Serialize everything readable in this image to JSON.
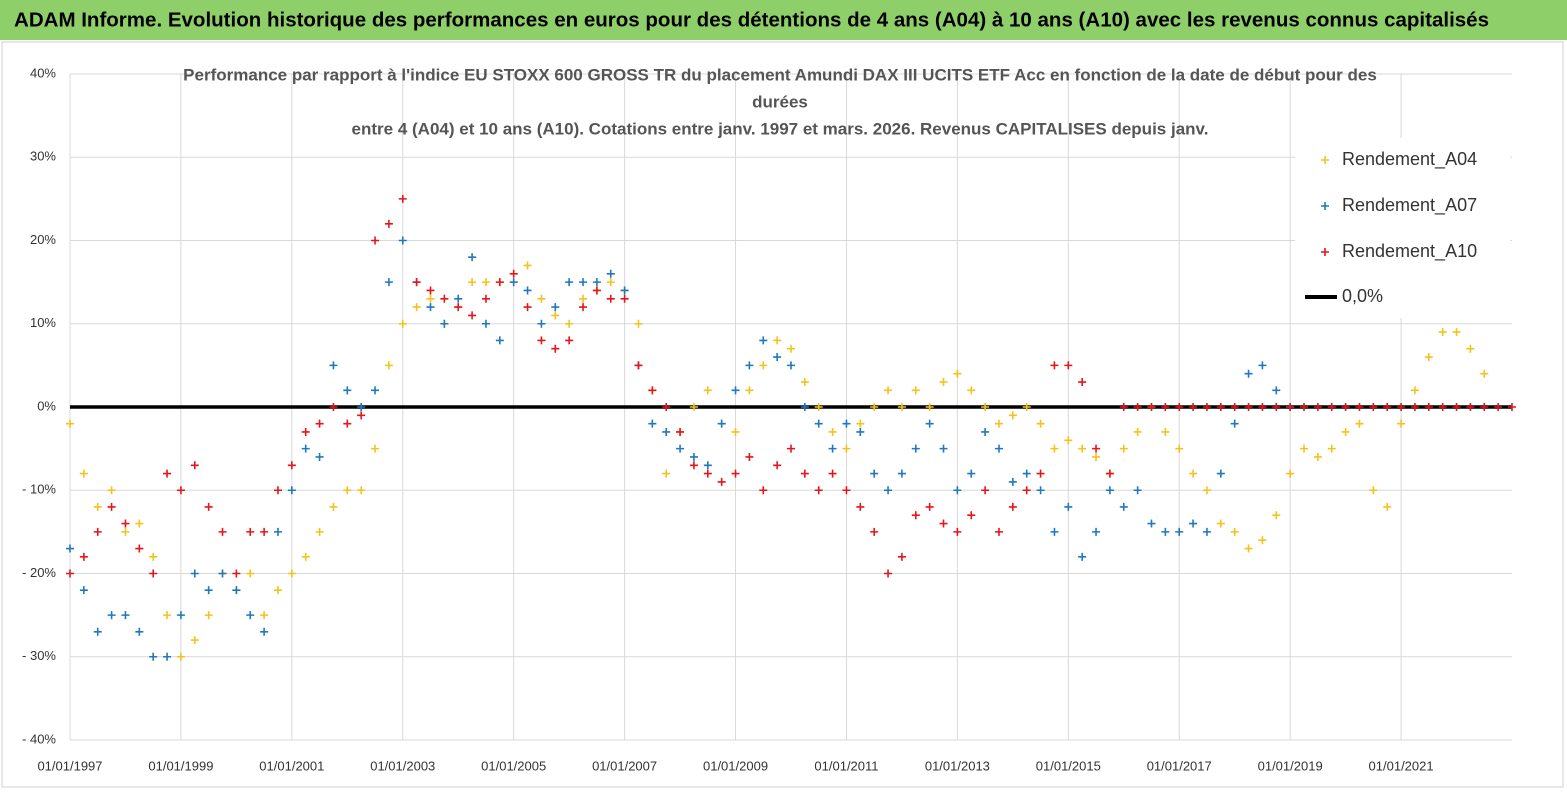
{
  "header": {
    "title": "ADAM Informe. Evolution historique des performances en euros pour des détentions de 4 ans (A04) à 10 ans (A10) avec les revenus connus capitalisés"
  },
  "chart_data": {
    "type": "scatter",
    "title": [
      "Performance par rapport à l'indice EU STOXX 600 GROSS TR  du placement Amundi DAX III UCITS ETF Acc en fonction de la date de début pour des",
      "durées",
      "entre 4 (A04) et 10 ans (A10). Cotations entre janv. 1997 et mars. 2026. Revenus CAPITALISES depuis janv."
    ],
    "x": [
      1997,
      1997.25,
      1997.5,
      1997.75,
      1998,
      1998.25,
      1998.5,
      1998.75,
      1999,
      1999.25,
      1999.5,
      1999.75,
      2000,
      2000.25,
      2000.5,
      2000.75,
      2001,
      2001.25,
      2001.5,
      2001.75,
      2002,
      2002.25,
      2002.5,
      2002.75,
      2003,
      2003.25,
      2003.5,
      2003.75,
      2004,
      2004.25,
      2004.5,
      2004.75,
      2005,
      2005.25,
      2005.5,
      2005.75,
      2006,
      2006.25,
      2006.5,
      2006.75,
      2007,
      2007.25,
      2007.5,
      2007.75,
      2008,
      2008.25,
      2008.5,
      2008.75,
      2009,
      2009.25,
      2009.5,
      2009.75,
      2010,
      2010.25,
      2010.5,
      2010.75,
      2011,
      2011.25,
      2011.5,
      2011.75,
      2012,
      2012.25,
      2012.5,
      2012.75,
      2013,
      2013.25,
      2013.5,
      2013.75,
      2014,
      2014.25,
      2014.5,
      2014.75,
      2015,
      2015.25,
      2015.5,
      2015.75,
      2016,
      2016.25,
      2016.5,
      2016.75,
      2017,
      2017.25,
      2017.5,
      2017.75,
      2018,
      2018.25,
      2018.5,
      2018.75,
      2019,
      2019.25,
      2019.5,
      2019.75,
      2020,
      2020.25,
      2020.5,
      2020.75,
      2021,
      2021.25,
      2021.5,
      2021.75,
      2022,
      2022.25,
      2022.5,
      2022.75,
      2023
    ],
    "series": [
      {
        "name": "Rendement_A04",
        "color": "#f5c21b",
        "values": [
          -2,
          -8,
          -12,
          -10,
          -15,
          -14,
          -18,
          -25,
          -30,
          -28,
          -25,
          -20,
          -22,
          -20,
          -25,
          -22,
          -20,
          -18,
          -15,
          -12,
          -10,
          -10,
          -5,
          5,
          10,
          12,
          13,
          10,
          12,
          15,
          15,
          15,
          15,
          17,
          13,
          11,
          10,
          13,
          14,
          15,
          14,
          10,
          2,
          -8,
          -3,
          0,
          2,
          -2,
          -3,
          2,
          5,
          8,
          7,
          3,
          0,
          -3,
          -5,
          -2,
          0,
          2,
          0,
          2,
          0,
          3,
          4,
          2,
          0,
          -2,
          -1,
          0,
          -2,
          -5,
          -4,
          -5,
          -6,
          -8,
          -5,
          -3,
          0,
          -3,
          -5,
          -8,
          -10,
          -14,
          -15,
          -17,
          -16,
          -13,
          -8,
          -5,
          -6,
          -5,
          -3,
          -2,
          -10,
          -12,
          -2,
          2,
          6,
          9,
          9,
          7,
          4,
          null,
          null
        ]
      },
      {
        "name": "Rendement_A07",
        "color": "#1f78c1",
        "values": [
          -17,
          -22,
          -27,
          -25,
          -25,
          -27,
          -30,
          -30,
          -25,
          -20,
          -22,
          -20,
          -22,
          -25,
          -27,
          -15,
          -10,
          -5,
          -6,
          5,
          2,
          0,
          2,
          15,
          20,
          15,
          12,
          10,
          13,
          18,
          10,
          8,
          15,
          14,
          10,
          12,
          15,
          15,
          15,
          16,
          14,
          5,
          -2,
          -3,
          -5,
          -6,
          -7,
          -2,
          2,
          5,
          8,
          6,
          5,
          0,
          -2,
          -5,
          -2,
          -3,
          -8,
          -10,
          -8,
          -5,
          -2,
          -5,
          -10,
          -8,
          -3,
          -5,
          -9,
          -8,
          -10,
          -15,
          -12,
          -18,
          -15,
          -10,
          -12,
          -10,
          -14,
          -15,
          -15,
          -14,
          -15,
          -8,
          -2,
          4,
          5,
          2,
          0,
          null,
          null,
          null,
          null,
          null,
          null,
          null,
          null,
          null,
          null,
          null,
          null,
          null,
          null,
          null,
          null
        ]
      },
      {
        "name": "Rendement_A10",
        "color": "#e8141a",
        "values": [
          -20,
          -18,
          -15,
          -12,
          -14,
          -17,
          -20,
          -8,
          -10,
          -7,
          -12,
          -15,
          -20,
          -15,
          -15,
          -10,
          -7,
          -3,
          -2,
          0,
          -2,
          -1,
          20,
          22,
          25,
          15,
          14,
          13,
          12,
          11,
          13,
          15,
          16,
          12,
          8,
          7,
          8,
          12,
          14,
          13,
          13,
          5,
          2,
          0,
          -3,
          -7,
          -8,
          -9,
          -8,
          -6,
          -10,
          -7,
          -5,
          -8,
          -10,
          -8,
          -10,
          -12,
          -15,
          -20,
          -18,
          -13,
          -12,
          -14,
          -15,
          -13,
          -10,
          -15,
          -12,
          -10,
          -8,
          5,
          5,
          3,
          -5,
          -8,
          0,
          0,
          0,
          0,
          0,
          0,
          0,
          0,
          0,
          0,
          0,
          0,
          0,
          0,
          0,
          0,
          0,
          0,
          0,
          0,
          0,
          0,
          0,
          0,
          0,
          0,
          0,
          0,
          0
        ]
      }
    ],
    "reference_line": {
      "name": "0,0%",
      "value": 0,
      "color": "#000000"
    },
    "xlim": [
      1997,
      2023
    ],
    "xticks": [
      {
        "value": 1997,
        "label": "01/01/1997"
      },
      {
        "value": 1999,
        "label": "01/01/1999"
      },
      {
        "value": 2001,
        "label": "01/01/2001"
      },
      {
        "value": 2003,
        "label": "01/01/2003"
      },
      {
        "value": 2005,
        "label": "01/01/2005"
      },
      {
        "value": 2007,
        "label": "01/01/2007"
      },
      {
        "value": 2009,
        "label": "01/01/2009"
      },
      {
        "value": 2011,
        "label": "01/01/2011"
      },
      {
        "value": 2013,
        "label": "01/01/2013"
      },
      {
        "value": 2015,
        "label": "01/01/2015"
      },
      {
        "value": 2017,
        "label": "01/01/2017"
      },
      {
        "value": 2019,
        "label": "01/01/2019"
      },
      {
        "value": 2021,
        "label": "01/01/2021"
      }
    ],
    "ylim": [
      -40,
      40
    ],
    "yticks": [
      {
        "value": -40,
        "label": "- 40%"
      },
      {
        "value": -30,
        "label": "- 30%"
      },
      {
        "value": -20,
        "label": "- 20%"
      },
      {
        "value": -10,
        "label": "- 10%"
      },
      {
        "value": 0,
        "label": "0%"
      },
      {
        "value": 10,
        "label": "10%"
      },
      {
        "value": 20,
        "label": "20%"
      },
      {
        "value": 30,
        "label": "30%"
      },
      {
        "value": 40,
        "label": "40%"
      }
    ],
    "grid": true,
    "legend": "top-right"
  }
}
